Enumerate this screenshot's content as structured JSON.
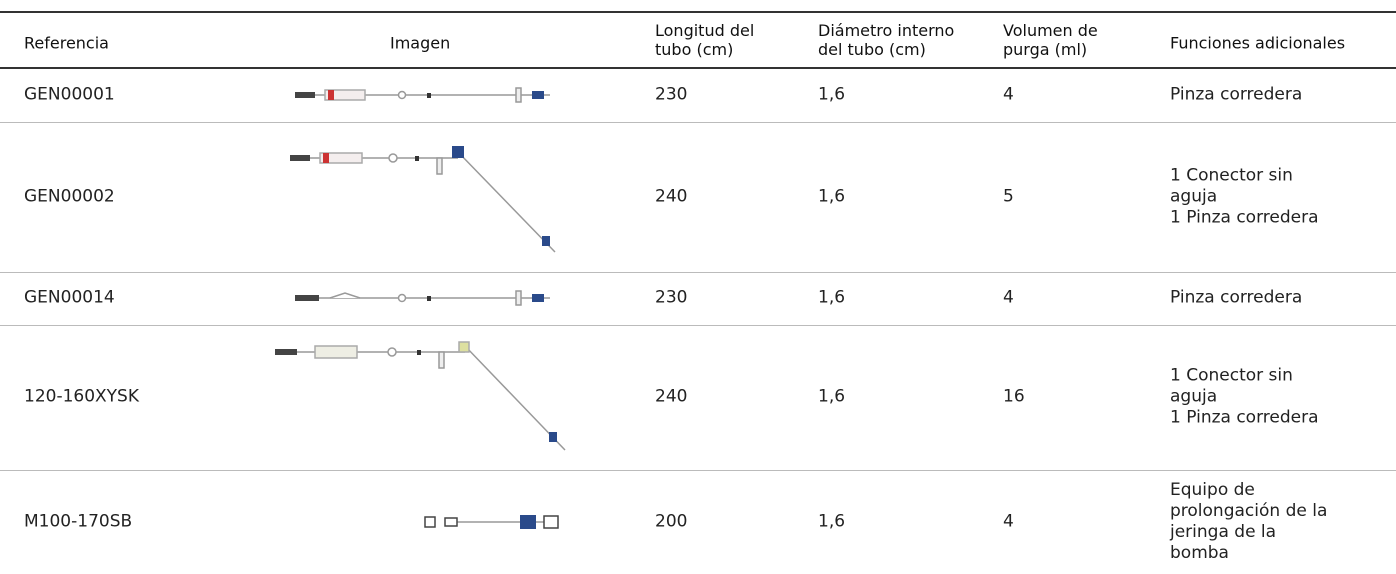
{
  "table": {
    "headers": [
      "Referencia",
      "Imagen",
      "Longitud del tubo (cm)",
      "Diámetro interno del tubo (cm)",
      "Volumen de purga (ml)",
      "Funciones adicionales"
    ],
    "rows": [
      {
        "reference": "GEN00001",
        "length": "230",
        "diameter": "1,6",
        "volume": "4",
        "functions": [
          "Pinza corredera"
        ]
      },
      {
        "reference": "GEN00002",
        "length": "240",
        "diameter": "1,6",
        "volume": "5",
        "functions": [
          "1 Conector sin aguja",
          "1 Pinza corredera"
        ]
      },
      {
        "reference": "GEN00014",
        "length": "230",
        "diameter": "1,6",
        "volume": "4",
        "functions": [
          "Pinza corredera"
        ]
      },
      {
        "reference": "120-160XYSK",
        "length": "240",
        "diameter": "1,6",
        "volume": "16",
        "functions": [
          "1 Conector sin aguja",
          "1 Pinza corredera"
        ]
      },
      {
        "reference": "M100-170SB",
        "length": "200",
        "diameter": "1,6",
        "volume": "4",
        "functions": [
          "Equipo de prolongación de la jeringa de la bomba"
        ]
      }
    ]
  }
}
